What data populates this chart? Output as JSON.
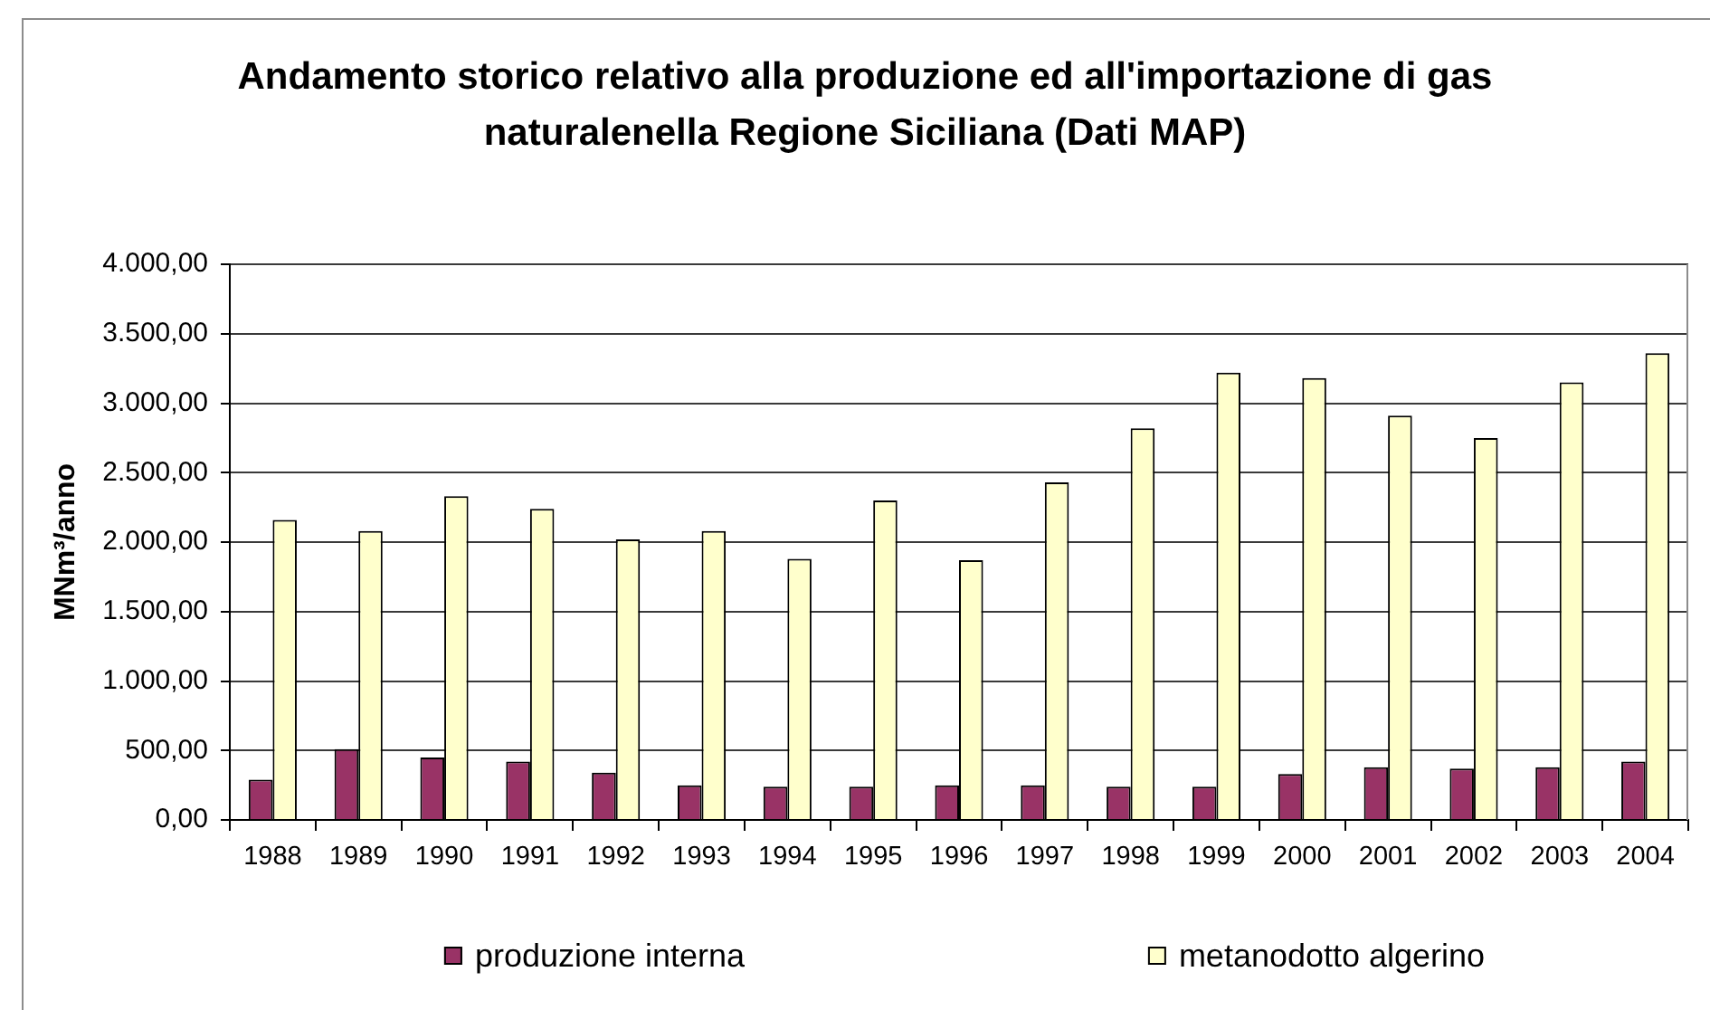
{
  "chart_data": {
    "type": "bar",
    "title": "Andamento storico relativo alla produzione ed all'importazione di gas naturalenella Regione Siciliana (Dati MAP)",
    "ylabel": "MNm³/anno",
    "categories": [
      "1988",
      "1989",
      "1990",
      "1991",
      "1992",
      "1993",
      "1994",
      "1995",
      "1996",
      "1997",
      "1998",
      "1999",
      "2000",
      "2001",
      "2002",
      "2003",
      "2004"
    ],
    "series": [
      {
        "name": "produzione interna",
        "color": "#993366",
        "values": [
          290,
          510,
          450,
          420,
          340,
          250,
          240,
          240,
          250,
          250,
          240,
          240,
          330,
          380,
          370,
          380,
          420
        ]
      },
      {
        "name": "metanodotto algerino",
        "color": "#ffffcc",
        "values": [
          2160,
          2080,
          2330,
          2240,
          2020,
          2080,
          1880,
          2300,
          1870,
          2430,
          2820,
          3220,
          3180,
          2910,
          2750,
          3150,
          3360
        ]
      }
    ],
    "ylim": [
      0,
      4000
    ],
    "yticks": [
      {
        "value": 0,
        "label": "0,00"
      },
      {
        "value": 500,
        "label": "500,00"
      },
      {
        "value": 1000,
        "label": "1.000,00"
      },
      {
        "value": 1500,
        "label": "1.500,00"
      },
      {
        "value": 2000,
        "label": "2.000,00"
      },
      {
        "value": 2500,
        "label": "2.500,00"
      },
      {
        "value": 3000,
        "label": "3.000,00"
      },
      {
        "value": 3500,
        "label": "3.500,00"
      },
      {
        "value": 4000,
        "label": "4.000,00"
      }
    ],
    "grid": "y",
    "legend": "bottom"
  }
}
